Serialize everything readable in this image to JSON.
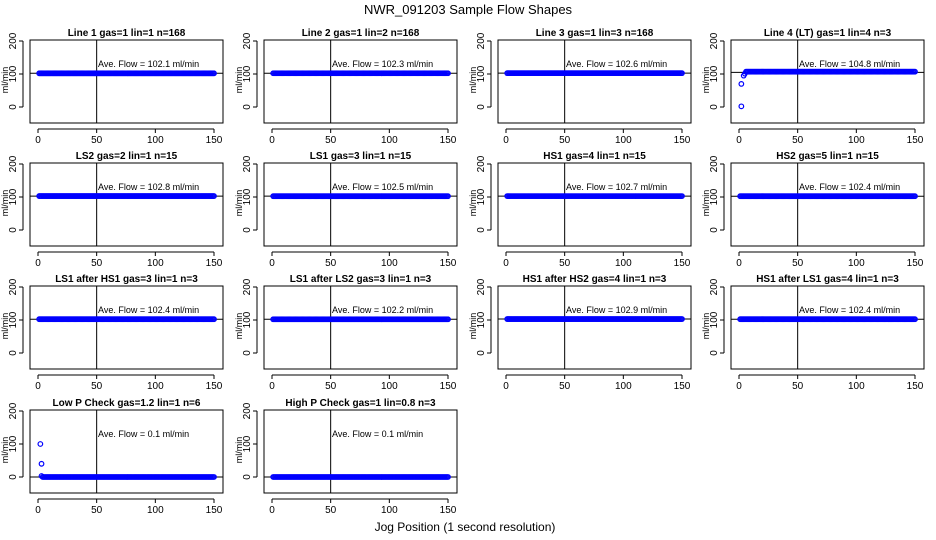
{
  "figure": {
    "title": "NWR_091203  Sample Flow Shapes",
    "xlabel": "Jog Position (1 second resolution)"
  },
  "colors": {
    "points": "#0000ff",
    "axes": "#000000"
  },
  "chart_data": [
    {
      "type": "scatter",
      "title": "Line 1 gas=1 lin=1 n=168",
      "ylabel": "ml/min",
      "xlim": [
        0,
        150
      ],
      "ylim": [
        0,
        200
      ],
      "xticks": [
        0,
        50,
        100,
        150
      ],
      "yticks": [
        0,
        100,
        200
      ],
      "vline_x": 50,
      "hline_y": 102.1,
      "annotation": "Ave. Flow =  102.1  ml/min",
      "series": [
        {
          "x_range": [
            1,
            150
          ],
          "y": 102.1,
          "outliers": []
        }
      ]
    },
    {
      "type": "scatter",
      "title": "Line 2 gas=1 lin=2 n=168",
      "ylabel": "ml/min",
      "xlim": [
        0,
        150
      ],
      "ylim": [
        0,
        200
      ],
      "xticks": [
        0,
        50,
        100,
        150
      ],
      "yticks": [
        0,
        100,
        200
      ],
      "vline_x": 50,
      "hline_y": 102.3,
      "annotation": "Ave. Flow =  102.3  ml/min",
      "series": [
        {
          "x_range": [
            1,
            150
          ],
          "y": 102.3,
          "outliers": []
        }
      ]
    },
    {
      "type": "scatter",
      "title": "Line 3 gas=1 lin=3 n=168",
      "ylabel": "ml/min",
      "xlim": [
        0,
        150
      ],
      "ylim": [
        0,
        200
      ],
      "xticks": [
        0,
        50,
        100,
        150
      ],
      "yticks": [
        0,
        100,
        200
      ],
      "vline_x": 50,
      "hline_y": 102.6,
      "annotation": "Ave. Flow =  102.6  ml/min",
      "series": [
        {
          "x_range": [
            1,
            150
          ],
          "y": 102.6,
          "outliers": []
        }
      ]
    },
    {
      "type": "scatter",
      "title": "Line 4 (LT) gas=1 lin=4 n=3",
      "ylabel": "ml/min",
      "xlim": [
        0,
        150
      ],
      "ylim": [
        0,
        200
      ],
      "xticks": [
        0,
        50,
        100,
        150
      ],
      "yticks": [
        0,
        100,
        200
      ],
      "vline_x": 50,
      "hline_y": 104.8,
      "annotation": "Ave. Flow =  104.8  ml/min",
      "series": [
        {
          "x_range": [
            6,
            150
          ],
          "y": 107,
          "outliers": [
            [
              2,
              2
            ],
            [
              2,
              70
            ],
            [
              4,
              95
            ],
            [
              5,
              101
            ]
          ]
        }
      ]
    },
    {
      "type": "scatter",
      "title": "LS2 gas=2 lin=1 n=15",
      "ylabel": "ml/min",
      "xlim": [
        0,
        150
      ],
      "ylim": [
        0,
        200
      ],
      "xticks": [
        0,
        50,
        100,
        150
      ],
      "yticks": [
        0,
        100,
        200
      ],
      "vline_x": 50,
      "hline_y": 102.8,
      "annotation": "Ave. Flow =  102.8  ml/min",
      "series": [
        {
          "x_range": [
            1,
            150
          ],
          "y": 102.8,
          "outliers": []
        }
      ]
    },
    {
      "type": "scatter",
      "title": "LS1 gas=3 lin=1 n=15",
      "ylabel": "ml/min",
      "xlim": [
        0,
        150
      ],
      "ylim": [
        0,
        200
      ],
      "xticks": [
        0,
        50,
        100,
        150
      ],
      "yticks": [
        0,
        100,
        200
      ],
      "vline_x": 50,
      "hline_y": 102.5,
      "annotation": "Ave. Flow =  102.5  ml/min",
      "series": [
        {
          "x_range": [
            1,
            150
          ],
          "y": 102.5,
          "outliers": []
        }
      ]
    },
    {
      "type": "scatter",
      "title": "HS1 gas=4 lin=1 n=15",
      "ylabel": "ml/min",
      "xlim": [
        0,
        150
      ],
      "ylim": [
        0,
        200
      ],
      "xticks": [
        0,
        50,
        100,
        150
      ],
      "yticks": [
        0,
        100,
        200
      ],
      "vline_x": 50,
      "hline_y": 102.7,
      "annotation": "Ave. Flow =  102.7  ml/min",
      "series": [
        {
          "x_range": [
            1,
            150
          ],
          "y": 102.7,
          "outliers": []
        }
      ]
    },
    {
      "type": "scatter",
      "title": "HS2 gas=5 lin=1 n=15",
      "ylabel": "ml/min",
      "xlim": [
        0,
        150
      ],
      "ylim": [
        0,
        200
      ],
      "xticks": [
        0,
        50,
        100,
        150
      ],
      "yticks": [
        0,
        100,
        200
      ],
      "vline_x": 50,
      "hline_y": 102.4,
      "annotation": "Ave. Flow =  102.4  ml/min",
      "series": [
        {
          "x_range": [
            1,
            150
          ],
          "y": 102.4,
          "outliers": []
        }
      ]
    },
    {
      "type": "scatter",
      "title": "LS1 after HS1 gas=3 lin=1 n=3",
      "ylabel": "ml/min",
      "xlim": [
        0,
        150
      ],
      "ylim": [
        0,
        200
      ],
      "xticks": [
        0,
        50,
        100,
        150
      ],
      "yticks": [
        0,
        100,
        200
      ],
      "vline_x": 50,
      "hline_y": 102.4,
      "annotation": "Ave. Flow =  102.4  ml/min",
      "series": [
        {
          "x_range": [
            1,
            150
          ],
          "y": 102.4,
          "outliers": []
        }
      ]
    },
    {
      "type": "scatter",
      "title": "LS1 after LS2 gas=3 lin=1 n=3",
      "ylabel": "ml/min",
      "xlim": [
        0,
        150
      ],
      "ylim": [
        0,
        200
      ],
      "xticks": [
        0,
        50,
        100,
        150
      ],
      "yticks": [
        0,
        100,
        200
      ],
      "vline_x": 50,
      "hline_y": 102.2,
      "annotation": "Ave. Flow =  102.2  ml/min",
      "series": [
        {
          "x_range": [
            1,
            150
          ],
          "y": 102.2,
          "outliers": []
        }
      ]
    },
    {
      "type": "scatter",
      "title": "HS1 after HS2 gas=4 lin=1 n=3",
      "ylabel": "ml/min",
      "xlim": [
        0,
        150
      ],
      "ylim": [
        0,
        200
      ],
      "xticks": [
        0,
        50,
        100,
        150
      ],
      "yticks": [
        0,
        100,
        200
      ],
      "vline_x": 50,
      "hline_y": 102.9,
      "annotation": "Ave. Flow =  102.9  ml/min",
      "series": [
        {
          "x_range": [
            1,
            150
          ],
          "y": 102.9,
          "outliers": []
        }
      ]
    },
    {
      "type": "scatter",
      "title": "HS1 after LS1 gas=4 lin=1 n=3",
      "ylabel": "ml/min",
      "xlim": [
        0,
        150
      ],
      "ylim": [
        0,
        200
      ],
      "xticks": [
        0,
        50,
        100,
        150
      ],
      "yticks": [
        0,
        100,
        200
      ],
      "vline_x": 50,
      "hline_y": 102.4,
      "annotation": "Ave. Flow =  102.4  ml/min",
      "series": [
        {
          "x_range": [
            1,
            150
          ],
          "y": 102.4,
          "outliers": []
        }
      ]
    },
    {
      "type": "scatter",
      "title": "Low P Check gas=1.2 lin=1 n=6",
      "ylabel": "ml/min",
      "xlim": [
        0,
        150
      ],
      "ylim": [
        0,
        200
      ],
      "xticks": [
        0,
        50,
        100,
        150
      ],
      "yticks": [
        0,
        100,
        200
      ],
      "vline_x": 50,
      "hline_y": 0.1,
      "annotation": "Ave. Flow =  0.1  ml/min",
      "series": [
        {
          "x_range": [
            4,
            150
          ],
          "y": 0.1,
          "outliers": [
            [
              2,
              100
            ],
            [
              3,
              40
            ],
            [
              3,
              3
            ]
          ]
        }
      ]
    },
    {
      "type": "scatter",
      "title": "High P Check gas=1 lin=0.8 n=3",
      "ylabel": "ml/min",
      "xlim": [
        0,
        150
      ],
      "ylim": [
        0,
        200
      ],
      "xticks": [
        0,
        50,
        100,
        150
      ],
      "yticks": [
        0,
        100,
        200
      ],
      "vline_x": 50,
      "hline_y": 0.1,
      "annotation": "Ave. Flow =  0.1  ml/min",
      "series": [
        {
          "x_range": [
            1,
            150
          ],
          "y": 0.1,
          "outliers": []
        }
      ]
    }
  ]
}
